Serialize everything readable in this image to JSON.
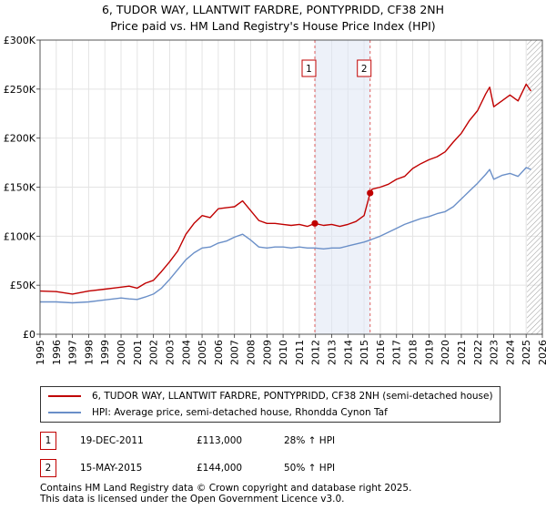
{
  "chart_data": {
    "type": "line",
    "title": "6, TUDOR WAY, LLANTWIT FARDRE, PONTYPRIDD, CF38 2NH",
    "subtitle": "Price paid vs. HM Land Registry's House Price Index (HPI)",
    "xlabel": "",
    "ylabel": "",
    "xlim": [
      1995,
      2026
    ],
    "ylim": [
      0,
      300000
    ],
    "x_ticks": [
      1995,
      1996,
      1997,
      1998,
      1999,
      2000,
      2001,
      2002,
      2003,
      2004,
      2005,
      2006,
      2007,
      2008,
      2009,
      2010,
      2011,
      2012,
      2013,
      2014,
      2015,
      2016,
      2017,
      2018,
      2019,
      2020,
      2021,
      2022,
      2023,
      2024,
      2025,
      2026
    ],
    "y_ticks": [
      {
        "value": 0,
        "label": "£0"
      },
      {
        "value": 50000,
        "label": "£50K"
      },
      {
        "value": 100000,
        "label": "£100K"
      },
      {
        "value": 150000,
        "label": "£150K"
      },
      {
        "value": 200000,
        "label": "£200K"
      },
      {
        "value": 250000,
        "label": "£250K"
      },
      {
        "value": 300000,
        "label": "£300K"
      }
    ],
    "grid": true,
    "series": [
      {
        "name": "6, TUDOR WAY, LLANTWIT FARDRE, PONTYPRIDD, CF38 2NH (semi-detached house)",
        "color": "#c00000",
        "x": [
          1995.0,
          1996.0,
          1997.0,
          1998.0,
          1999.0,
          2000.0,
          2000.5,
          2001.0,
          2001.5,
          2002.0,
          2002.5,
          2003.0,
          2003.5,
          2004.0,
          2004.5,
          2005.0,
          2005.5,
          2006.0,
          2006.5,
          2007.0,
          2007.5,
          2008.0,
          2008.5,
          2009.0,
          2009.5,
          2010.0,
          2010.5,
          2011.0,
          2011.5,
          2011.96,
          2012.5,
          2013.0,
          2013.5,
          2014.0,
          2014.5,
          2015.0,
          2015.37,
          2015.5,
          2016.0,
          2016.5,
          2017.0,
          2017.5,
          2018.0,
          2018.5,
          2019.0,
          2019.5,
          2020.0,
          2020.5,
          2021.0,
          2021.5,
          2022.0,
          2022.5,
          2022.75,
          2023.0,
          2023.5,
          2024.0,
          2024.5,
          2025.0,
          2025.3
        ],
        "y": [
          44000,
          43500,
          41000,
          44000,
          46000,
          48000,
          49000,
          47000,
          52000,
          55000,
          64000,
          74000,
          85000,
          102000,
          113000,
          121000,
          119000,
          128000,
          129000,
          130000,
          136000,
          126000,
          116000,
          113000,
          113000,
          112000,
          111000,
          112000,
          110000,
          113000,
          111000,
          112000,
          110000,
          112000,
          115000,
          121000,
          144000,
          148000,
          150000,
          153000,
          158000,
          161000,
          169000,
          174000,
          178000,
          181000,
          186000,
          196000,
          205000,
          218000,
          228000,
          245000,
          252000,
          232000,
          238000,
          244000,
          238000,
          255000,
          248000
        ]
      },
      {
        "name": "HPI: Average price, semi-detached house, Rhondda Cynon Taf",
        "color": "#6a8fc8",
        "x": [
          1995.0,
          1996.0,
          1997.0,
          1998.0,
          1999.0,
          2000.0,
          2000.5,
          2001.0,
          2001.5,
          2002.0,
          2002.5,
          2003.0,
          2003.5,
          2004.0,
          2004.5,
          2005.0,
          2005.5,
          2006.0,
          2006.5,
          2007.0,
          2007.5,
          2008.0,
          2008.5,
          2009.0,
          2009.5,
          2010.0,
          2010.5,
          2011.0,
          2011.5,
          2011.96,
          2012.5,
          2013.0,
          2013.5,
          2014.0,
          2014.5,
          2015.0,
          2015.37,
          2015.5,
          2016.0,
          2016.5,
          2017.0,
          2017.5,
          2018.0,
          2018.5,
          2019.0,
          2019.5,
          2020.0,
          2020.5,
          2021.0,
          2021.5,
          2022.0,
          2022.5,
          2022.75,
          2023.0,
          2023.5,
          2024.0,
          2024.5,
          2025.0,
          2025.3
        ],
        "y": [
          33000,
          33000,
          32000,
          33000,
          35000,
          37000,
          36000,
          35500,
          38000,
          41000,
          47000,
          56000,
          66000,
          76000,
          83000,
          88000,
          89000,
          93000,
          95000,
          99000,
          102000,
          96000,
          89000,
          88000,
          89000,
          89000,
          88000,
          89000,
          88000,
          88000,
          87000,
          88000,
          88000,
          90000,
          92000,
          94000,
          96000,
          97000,
          100000,
          104000,
          108000,
          112000,
          115000,
          118000,
          120000,
          123000,
          125000,
          130000,
          138000,
          146000,
          154000,
          163000,
          168000,
          158000,
          162000,
          164000,
          161000,
          170000,
          168000
        ]
      }
    ],
    "markers": [
      {
        "label": "1",
        "x": 2011.96,
        "y": 113000
      },
      {
        "label": "2",
        "x": 2015.37,
        "y": 144000
      }
    ],
    "shaded_range": [
      2011.96,
      2015.37
    ],
    "hatched_after": 2025.05
  },
  "legend": {
    "property_label": "6, TUDOR WAY, LLANTWIT FARDRE, PONTYPRIDD, CF38 2NH (semi-detached house)",
    "hpi_label": "HPI: Average price, semi-detached house, Rhondda Cynon Taf"
  },
  "transactions": [
    {
      "num": "1",
      "date": "19-DEC-2011",
      "price": "£113,000",
      "hpi": "28% ↑ HPI"
    },
    {
      "num": "2",
      "date": "15-MAY-2015",
      "price": "£144,000",
      "hpi": "50% ↑ HPI"
    }
  ],
  "footer": {
    "line1": "Contains HM Land Registry data © Crown copyright and database right 2025.",
    "line2": "This data is licensed under the Open Government Licence v3.0."
  }
}
